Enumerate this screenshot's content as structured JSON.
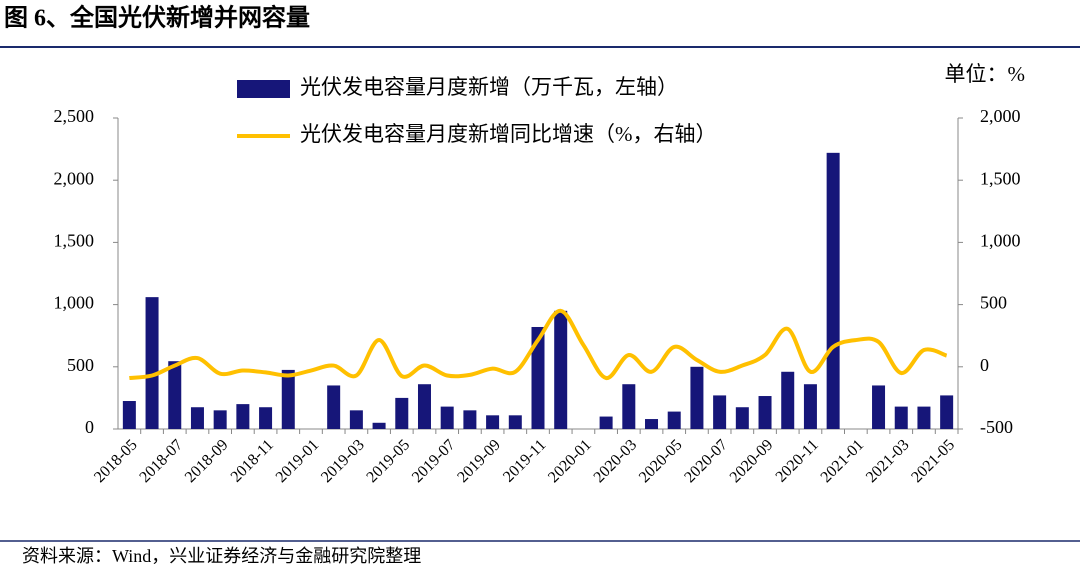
{
  "title": "图 6、全国光伏新增并网容量",
  "source": "资料来源：Wind，兴业证券经济与金融研究院整理",
  "chart_data": {
    "type": "bar-line",
    "unit_label": "单位：%",
    "categories": [
      "2018-05",
      null,
      "2018-07",
      null,
      "2018-09",
      null,
      "2018-11",
      null,
      "2019-01",
      null,
      "2019-03",
      null,
      "2019-05",
      null,
      "2019-07",
      null,
      "2019-09",
      null,
      "2019-11",
      null,
      "2020-01",
      null,
      "2020-03",
      null,
      "2020-05",
      null,
      "2020-07",
      null,
      "2020-09",
      null,
      "2020-11",
      null,
      "2021-01",
      null,
      "2021-03",
      null,
      "2021-05"
    ],
    "series": [
      {
        "name": "光伏发电容量月度新增（万千瓦，左轴）",
        "color": "#161679",
        "kind": "bar",
        "axis": "y",
        "values": [
          225,
          1060,
          545,
          175,
          150,
          200,
          175,
          475,
          null,
          350,
          150,
          50,
          250,
          360,
          180,
          150,
          110,
          110,
          820,
          950,
          null,
          100,
          360,
          80,
          140,
          500,
          270,
          175,
          265,
          460,
          360,
          2220,
          null,
          350,
          180,
          180,
          270
        ]
      },
      {
        "name": "光伏发电容量月度新增同比增速（%，右轴）",
        "color": "#ffc000",
        "kind": "line",
        "axis": "y2",
        "values": [
          -90,
          -70,
          10,
          70,
          -55,
          -30,
          -45,
          -70,
          -30,
          10,
          -70,
          215,
          -75,
          10,
          -70,
          -65,
          -15,
          -40,
          215,
          450,
          175,
          -90,
          95,
          -40,
          160,
          55,
          -40,
          10,
          95,
          305,
          -40,
          160,
          215,
          200,
          -50,
          135,
          90
        ]
      }
    ],
    "ylim": [
      0,
      2500
    ],
    "yticks": [
      0,
      500,
      {
        "value": 1000,
        "label": "1,000"
      },
      {
        "value": 1500,
        "label": "1,500"
      },
      {
        "value": 2000,
        "label": "2,000"
      },
      {
        "value": 2500,
        "label": "2,500"
      }
    ],
    "y2lim": [
      -500,
      2000
    ],
    "y2ticks": [
      -500,
      0,
      500,
      {
        "value": 1000,
        "label": "1,000"
      },
      {
        "value": 1500,
        "label": "1,500"
      },
      {
        "value": 2000,
        "label": "2,000"
      }
    ]
  }
}
